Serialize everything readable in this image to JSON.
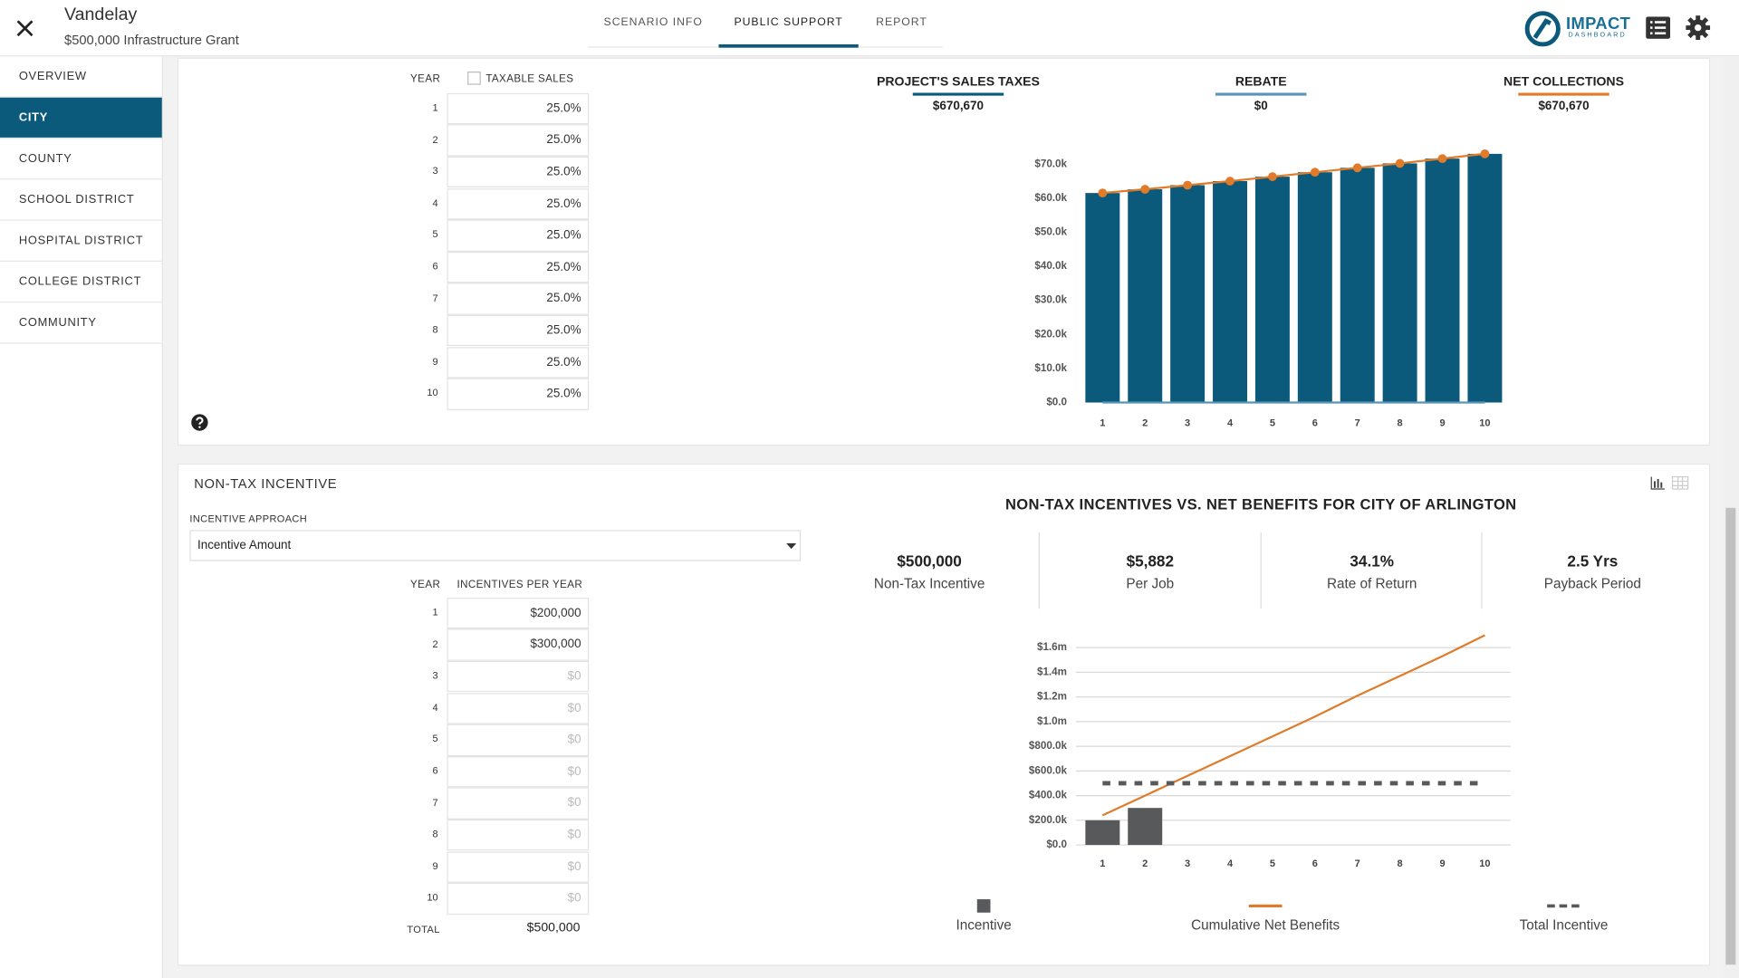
{
  "header": {
    "title": "Vandelay",
    "subtitle": "$500,000 Infrastructure Grant",
    "logo": "IMPACT",
    "logo_sub": "DASHBOARD"
  },
  "tabs": {
    "items": [
      "SCENARIO INFO",
      "PUBLIC SUPPORT",
      "REPORT"
    ],
    "active": 1
  },
  "sidebar": {
    "items": [
      "OVERVIEW",
      "CITY",
      "COUNTY",
      "SCHOOL DISTRICT",
      "HOSPITAL DISTRICT",
      "COLLEGE DISTRICT",
      "COMMUNITY"
    ],
    "active": 1
  },
  "sales_table": {
    "year_header": "YEAR",
    "value_header": "TAXABLE SALES",
    "years": [
      "1",
      "2",
      "3",
      "4",
      "5",
      "6",
      "7",
      "8",
      "9",
      "10"
    ],
    "values": [
      "25.0%",
      "25.0%",
      "25.0%",
      "25.0%",
      "25.0%",
      "25.0%",
      "25.0%",
      "25.0%",
      "25.0%",
      "25.0%"
    ]
  },
  "incentive_panel": {
    "title": "NON-TAX INCENTIVE",
    "approach_label": "INCENTIVE APPROACH",
    "approach": "Incentive Amount",
    "year_header": "YEAR",
    "value_header": "INCENTIVES PER YEAR",
    "years": [
      "1",
      "2",
      "3",
      "4",
      "5",
      "6",
      "7",
      "8",
      "9",
      "10"
    ],
    "values": [
      "$200,000",
      "$300,000",
      "$0",
      "$0",
      "$0",
      "$0",
      "$0",
      "$0",
      "$0",
      "$0"
    ],
    "total_label": "TOTAL",
    "total": "$500,000"
  },
  "chart_data": [
    {
      "type": "bar",
      "categories": [
        "1",
        "2",
        "3",
        "4",
        "5",
        "6",
        "7",
        "8",
        "9",
        "10"
      ],
      "series": [
        {
          "name": "PROJECT'S SALES TAXES",
          "total": "$670,670",
          "color": "#0b5a7c",
          "type": "bar",
          "values": [
            61500,
            62600,
            63800,
            65000,
            66300,
            67600,
            68900,
            70200,
            71600,
            73000
          ]
        },
        {
          "name": "REBATE",
          "total": "$0",
          "color": "#5b93b5",
          "type": "line",
          "values": [
            0,
            0,
            0,
            0,
            0,
            0,
            0,
            0,
            0,
            0
          ]
        },
        {
          "name": "NET COLLECTIONS",
          "total": "$670,670",
          "color": "#e07b2a",
          "type": "line",
          "markers": true,
          "values": [
            61500,
            62600,
            63800,
            65000,
            66300,
            67600,
            68900,
            70200,
            71600,
            73000
          ]
        }
      ],
      "ylim": [
        0,
        75000
      ],
      "yticks": [
        {
          "value": 0,
          "label": "$0.0"
        },
        {
          "value": 10000,
          "label": "$10.0k"
        },
        {
          "value": 20000,
          "label": "$20.0k"
        },
        {
          "value": 30000,
          "label": "$30.0k"
        },
        {
          "value": 40000,
          "label": "$40.0k"
        },
        {
          "value": 50000,
          "label": "$50.0k"
        },
        {
          "value": 60000,
          "label": "$60.0k"
        },
        {
          "value": 70000,
          "label": "$70.0k"
        }
      ],
      "grid": false,
      "legend": "top"
    },
    {
      "type": "bar",
      "title": "NON-TAX INCENTIVES VS. NET BENEFITS FOR CITY OF ARLINGTON",
      "stats": [
        {
          "value": "$500,000",
          "label": "Non-Tax Incentive"
        },
        {
          "value": "$5,882",
          "label": "Per Job"
        },
        {
          "value": "34.1%",
          "label": "Rate of Return"
        },
        {
          "value": "2.5 Yrs",
          "label": "Payback Period"
        }
      ],
      "categories": [
        "1",
        "2",
        "3",
        "4",
        "5",
        "6",
        "7",
        "8",
        "9",
        "10"
      ],
      "series": [
        {
          "name": "Incentive",
          "color": "#58595b",
          "type": "bar",
          "values": [
            200000,
            300000,
            0,
            0,
            0,
            0,
            0,
            0,
            0,
            0
          ]
        },
        {
          "name": "Cumulative Net Benefits",
          "color": "#e07b2a",
          "type": "line",
          "values": [
            240000,
            400000,
            560000,
            720000,
            880000,
            1040000,
            1210000,
            1370000,
            1530000,
            1700000
          ]
        },
        {
          "name": "Total Incentive",
          "color": "#58595b",
          "type": "dashed",
          "values": [
            500000,
            500000,
            500000,
            500000,
            500000,
            500000,
            500000,
            500000,
            500000,
            500000
          ]
        }
      ],
      "ylim": [
        0,
        1700000
      ],
      "yticks": [
        {
          "value": 0,
          "label": "$0.0"
        },
        {
          "value": 200000,
          "label": "$200.0k"
        },
        {
          "value": 400000,
          "label": "$400.0k"
        },
        {
          "value": 600000,
          "label": "$600.0k"
        },
        {
          "value": 800000,
          "label": "$800.0k"
        },
        {
          "value": 1000000,
          "label": "$1.0m"
        },
        {
          "value": 1200000,
          "label": "$1.2m"
        },
        {
          "value": 1400000,
          "label": "$1.4m"
        },
        {
          "value": 1600000,
          "label": "$1.6m"
        }
      ],
      "grid": true,
      "legend": "bottom"
    }
  ]
}
